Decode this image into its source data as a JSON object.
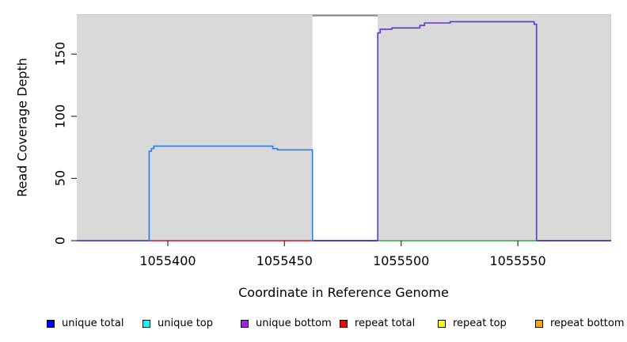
{
  "chart_data": {
    "type": "line",
    "title": "",
    "xlabel": "Coordinate in Reference Genome",
    "ylabel": "Read Coverage Depth",
    "xlim": [
      1055361,
      1055590
    ],
    "ylim": [
      0,
      182
    ],
    "grid": false,
    "legend_position": "bottom",
    "x_ticks": [
      {
        "value": 1055400,
        "label": "1055400"
      },
      {
        "value": 1055450,
        "label": "1055450"
      },
      {
        "value": 1055500,
        "label": "1055500"
      },
      {
        "value": 1055550,
        "label": "1055550"
      }
    ],
    "y_ticks": [
      {
        "value": 0,
        "label": "0"
      },
      {
        "value": 50,
        "label": "50"
      },
      {
        "value": 100,
        "label": "100"
      },
      {
        "value": 150,
        "label": "150"
      }
    ],
    "background_regions": [
      {
        "name": "mappable-region-left",
        "x0": 1055361,
        "x1": 1055462,
        "color": "#d9d9d9"
      },
      {
        "name": "gap-region",
        "x0": 1055462,
        "x1": 1055490,
        "color": "#ffffff"
      },
      {
        "name": "mappable-region-right",
        "x0": 1055490,
        "x1": 1055590,
        "color": "#d9d9d9"
      }
    ],
    "panel_edge_color": "#c8c8c8",
    "offscale_cap_line": {
      "x0": 1055462,
      "x1": 1055490,
      "value": 181,
      "color": "#8a8a8a"
    },
    "series": [
      {
        "name": "unique total",
        "color": "#2f7ce8",
        "points": [
          [
            1055392,
            0
          ],
          [
            1055392,
            72
          ],
          [
            1055393,
            72
          ],
          [
            1055393,
            74
          ],
          [
            1055394,
            74
          ],
          [
            1055394,
            76
          ],
          [
            1055445,
            76
          ],
          [
            1055445,
            74
          ],
          [
            1055447,
            74
          ],
          [
            1055447,
            73
          ],
          [
            1055462,
            73
          ],
          [
            1055462,
            0
          ]
        ]
      },
      {
        "name": "unique bottom",
        "color": "#6231d8",
        "points": [
          [
            1055490,
            0
          ],
          [
            1055490,
            167
          ],
          [
            1055491,
            167
          ],
          [
            1055491,
            170
          ],
          [
            1055496,
            170
          ],
          [
            1055496,
            171
          ],
          [
            1055508,
            171
          ],
          [
            1055508,
            173
          ],
          [
            1055510,
            173
          ],
          [
            1055510,
            175
          ],
          [
            1055521,
            175
          ],
          [
            1055521,
            176
          ],
          [
            1055557,
            176
          ],
          [
            1055557,
            174
          ],
          [
            1055558,
            174
          ],
          [
            1055558,
            0
          ]
        ]
      }
    ],
    "baseline_segments": [
      {
        "x0": 1055361,
        "x1": 1055392,
        "value": 0,
        "color": "#5a52e0"
      },
      {
        "x0": 1055392,
        "x1": 1055462,
        "value": 0,
        "color": "#e0485c"
      },
      {
        "x0": 1055462,
        "x1": 1055490,
        "value": 0,
        "color": "#4b3bd9"
      },
      {
        "x0": 1055490,
        "x1": 1055558,
        "value": 0,
        "color": "#57be6b"
      },
      {
        "x0": 1055558,
        "x1": 1055590,
        "value": 0,
        "color": "#5340d8"
      }
    ],
    "legend": {
      "entries": [
        {
          "label": "unique total",
          "color": "#0000ff"
        },
        {
          "label": "unique top",
          "color": "#00ffff"
        },
        {
          "label": "unique bottom",
          "color": "#a020f0"
        },
        {
          "label": "repeat total",
          "color": "#ff0000"
        },
        {
          "label": "repeat top",
          "color": "#ffff00"
        },
        {
          "label": "repeat bottom",
          "color": "#ffa500"
        }
      ]
    }
  }
}
